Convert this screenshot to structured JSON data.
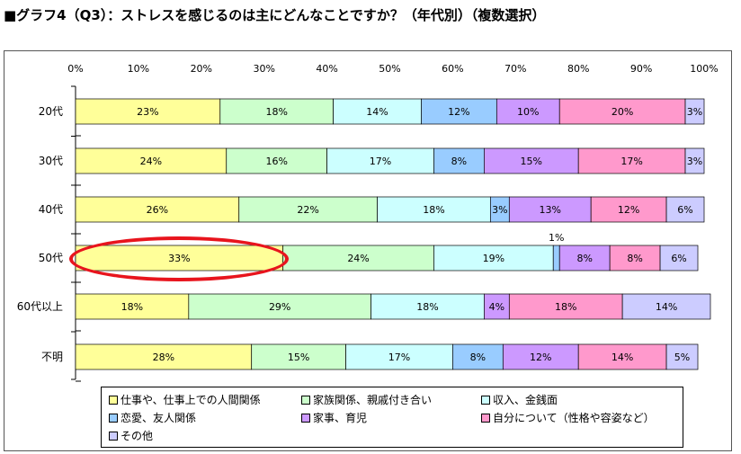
{
  "title": "■グラフ4（Q3）：ストレスを感じるのは主にどんなことですか？（年代別）（複数選択）",
  "colors": {
    "series": [
      "#ffff99",
      "#ccffcc",
      "#ccffff",
      "#99ccff",
      "#cc99ff",
      "#ff99cc",
      "#ccccff"
    ],
    "callout": "#e8141d"
  },
  "legend": {
    "items": [
      {
        "label": "仕事や、仕事上での人間関係"
      },
      {
        "label": "家族関係、親戚付き合い"
      },
      {
        "label": "収入、金銭面"
      },
      {
        "label": "恋愛、友人関係"
      },
      {
        "label": "家事、育児"
      },
      {
        "label": "自分について（性格や容姿など）"
      },
      {
        "label": "その他"
      }
    ]
  },
  "chart_data": {
    "type": "bar",
    "orientation": "horizontal",
    "stacked": "percent",
    "xlim": [
      0,
      100
    ],
    "xticks": [
      "0%",
      "10%",
      "20%",
      "30%",
      "40%",
      "50%",
      "60%",
      "70%",
      "80%",
      "90%",
      "100%"
    ],
    "categories": [
      "20代",
      "30代",
      "40代",
      "50代",
      "60代以上",
      "不明"
    ],
    "series": [
      {
        "name": "仕事や、仕事上での人間関係",
        "values": [
          23,
          24,
          26,
          33,
          18,
          28
        ]
      },
      {
        "name": "家族関係、親戚付き合い",
        "values": [
          18,
          16,
          22,
          24,
          29,
          15
        ]
      },
      {
        "name": "収入、金銭面",
        "values": [
          14,
          17,
          18,
          19,
          18,
          17
        ]
      },
      {
        "name": "恋愛、友人関係",
        "values": [
          12,
          8,
          3,
          1,
          0,
          8
        ]
      },
      {
        "name": "家事、育児",
        "values": [
          10,
          15,
          13,
          8,
          4,
          12
        ]
      },
      {
        "name": "自分について（性格や容姿など）",
        "values": [
          20,
          17,
          12,
          8,
          18,
          14
        ]
      },
      {
        "name": "その他",
        "values": [
          3,
          3,
          6,
          6,
          14,
          5
        ]
      }
    ],
    "annotations": [
      {
        "text": "1%",
        "category": "50代",
        "series": "恋愛、友人関係",
        "position": "above"
      }
    ],
    "highlight": {
      "category": "50代",
      "series": "仕事や、仕事上での人間関係",
      "shape": "red ellipse"
    },
    "grid": false,
    "legend_position": "bottom"
  }
}
